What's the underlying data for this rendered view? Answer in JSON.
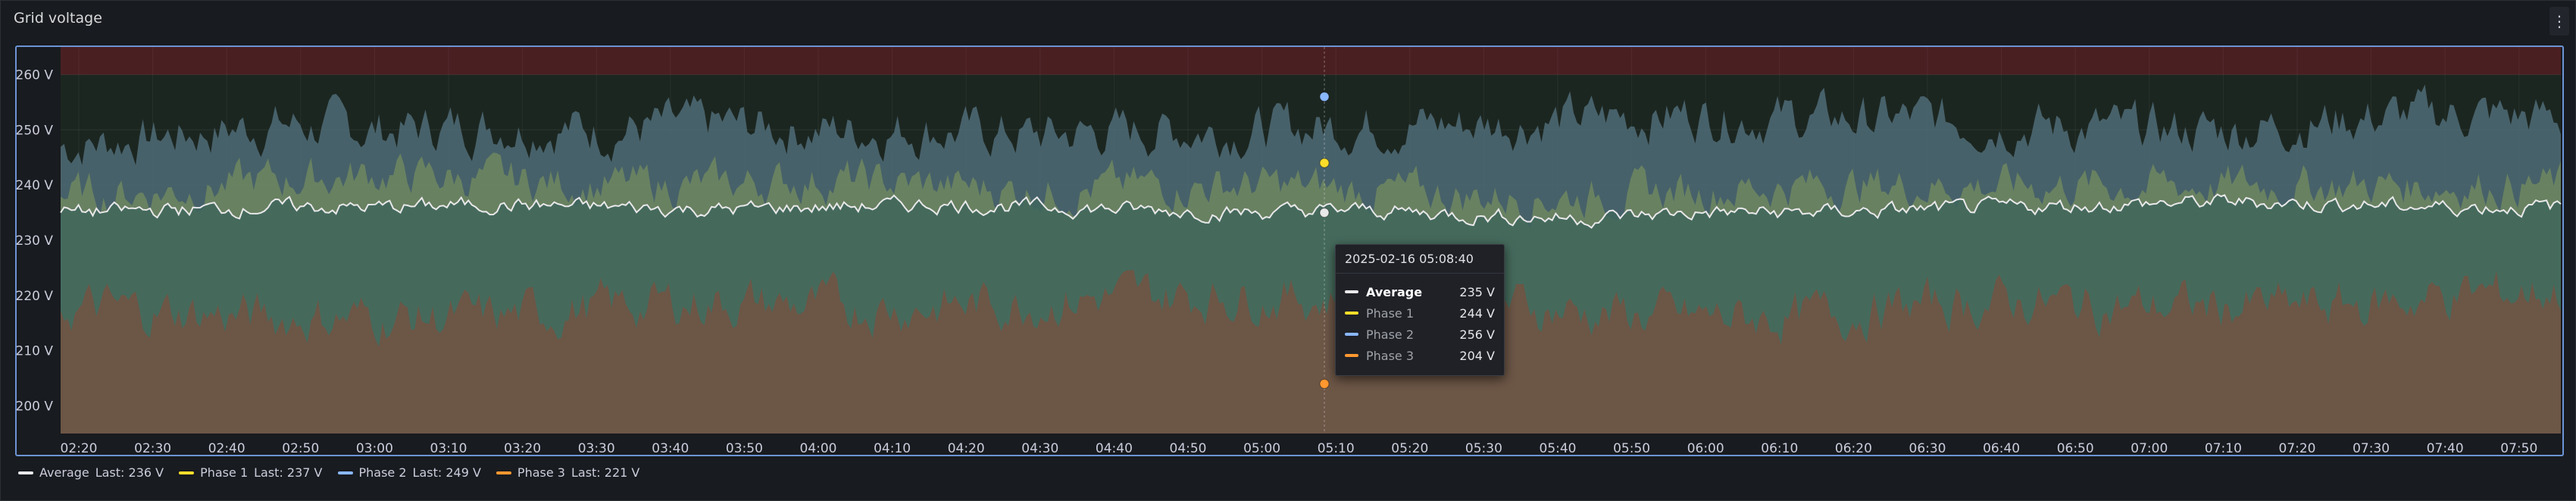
{
  "panel": {
    "title": "Grid voltage"
  },
  "chart_data": {
    "type": "area",
    "title": "Grid voltage",
    "y_unit": "V",
    "ylim": [
      195,
      265
    ],
    "y_ticks": [
      200,
      210,
      220,
      230,
      240,
      250,
      260
    ],
    "y_tick_labels": [
      "200 V",
      "210 V",
      "220 V",
      "230 V",
      "240 V",
      "250 V",
      "260 V"
    ],
    "x_range": [
      "2025-02-16 02:15",
      "2025-02-16 07:57"
    ],
    "x_tick_labels": [
      "02:20",
      "02:30",
      "02:40",
      "02:50",
      "03:00",
      "03:10",
      "03:20",
      "03:30",
      "03:40",
      "03:50",
      "04:00",
      "04:10",
      "04:20",
      "04:30",
      "04:40",
      "04:50",
      "05:00",
      "05:10",
      "05:20",
      "05:30",
      "05:40",
      "05:50",
      "06:00",
      "06:10",
      "06:20",
      "06:30",
      "06:40",
      "06:50",
      "07:00",
      "07:10",
      "07:20",
      "07:30",
      "07:40",
      "07:50"
    ],
    "thresholds": [
      {
        "above": 260,
        "color": "#4a1f22"
      }
    ],
    "series": [
      {
        "name": "Average",
        "color": "#e8e8ea",
        "last": "236 V",
        "values_approx": [
          235,
          235.5,
          236,
          236,
          236.5,
          236,
          235.5,
          236,
          236.5,
          236,
          235.5,
          235,
          235.5,
          234.5,
          234,
          235,
          235,
          235.5,
          236,
          236.5,
          237,
          236.5,
          236,
          236
        ]
      },
      {
        "name": "Phase 1",
        "color": "#fade2a",
        "last": "237 V",
        "values_approx": [
          238,
          239,
          241,
          242,
          241,
          240,
          240,
          241,
          240,
          239,
          240,
          240,
          239,
          238,
          238,
          239,
          240,
          240,
          240,
          240,
          240,
          240,
          240,
          240
        ]
      },
      {
        "name": "Phase 2",
        "color": "#8ab8ff",
        "last": "249 V",
        "values_approx": [
          247,
          249,
          251,
          250,
          251,
          250,
          251,
          250,
          250,
          249,
          250,
          250,
          251,
          251,
          252,
          253,
          252,
          252,
          251,
          250,
          250,
          252,
          253,
          252
        ]
      },
      {
        "name": "Phase 3",
        "color": "#ff9830",
        "last": "221 V",
        "values_approx": [
          218,
          217,
          216,
          216,
          216,
          218,
          219,
          218,
          218,
          219,
          220,
          220,
          219,
          219,
          217,
          216,
          216,
          218,
          219,
          218,
          218,
          218,
          220,
          221
        ]
      }
    ]
  },
  "legend": {
    "items": [
      {
        "label": "Average",
        "last": "Last: 236 V",
        "color": "#e8e8ea"
      },
      {
        "label": "Phase 1",
        "last": "Last: 237 V",
        "color": "#fade2a"
      },
      {
        "label": "Phase 2",
        "last": "Last: 249 V",
        "color": "#8ab8ff"
      },
      {
        "label": "Phase 3",
        "last": "Last: 221 V",
        "color": "#ff9830"
      }
    ]
  },
  "tooltip": {
    "time": "2025-02-16 05:08:40",
    "rows": [
      {
        "name": "Average",
        "value": "235 V",
        "color": "#e8e8ea"
      },
      {
        "name": "Phase 1",
        "value": "244 V",
        "color": "#fade2a"
      },
      {
        "name": "Phase 2",
        "value": "256 V",
        "color": "#8ab8ff"
      },
      {
        "name": "Phase 3",
        "value": "204 V",
        "color": "#ff9830"
      }
    ]
  }
}
